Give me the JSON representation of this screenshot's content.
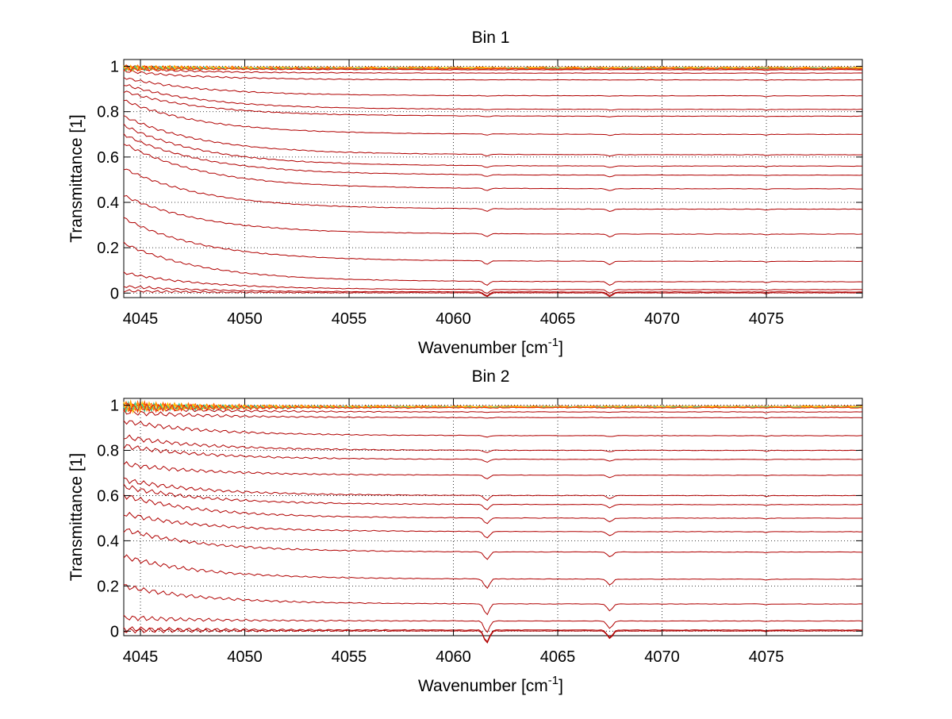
{
  "chart_data": [
    {
      "type": "line",
      "title": "Bin 1",
      "xlabel": "Wavenumber [cm",
      "xlabel_sup": "-1",
      "xlabel_end": "]",
      "ylabel": "Transmittance [1]",
      "xlim": [
        4044.2,
        4079.6
      ],
      "ylim": [
        -0.02,
        1.03
      ],
      "xticks": [
        4045,
        4050,
        4055,
        4060,
        4065,
        4070,
        4075
      ],
      "yticks": [
        0,
        0.2,
        0.4,
        0.6,
        0.8,
        1
      ],
      "ytick_labels": [
        "0",
        "0.2",
        "0.4",
        "0.6",
        "0.8",
        "1"
      ],
      "grid": true,
      "line_color": "#b00000",
      "noisy_colors": [
        "#ff6600",
        "#ff9900",
        "#ffcc00",
        "#33cc99",
        "#ff3300"
      ],
      "series": [
        {
          "start": 1.0,
          "end": 0.985
        },
        {
          "start": 0.99,
          "end": 0.97
        },
        {
          "start": 0.98,
          "end": 0.94
        },
        {
          "start": 0.95,
          "end": 0.87
        },
        {
          "start": 0.92,
          "end": 0.81
        },
        {
          "start": 0.89,
          "end": 0.78
        },
        {
          "start": 0.85,
          "end": 0.7
        },
        {
          "start": 0.78,
          "end": 0.61
        },
        {
          "start": 0.74,
          "end": 0.56
        },
        {
          "start": 0.7,
          "end": 0.52
        },
        {
          "start": 0.66,
          "end": 0.46
        },
        {
          "start": 0.55,
          "end": 0.37
        },
        {
          "start": 0.43,
          "end": 0.26
        },
        {
          "start": 0.33,
          "end": 0.14
        },
        {
          "start": 0.22,
          "end": 0.05
        },
        {
          "start": 0.09,
          "end": 0.015
        },
        {
          "start": 0.03,
          "end": 0.005
        },
        {
          "start": 0.01,
          "end": 0.001
        }
      ]
    },
    {
      "type": "line",
      "title": "Bin 2",
      "xlabel": "Wavenumber [cm",
      "xlabel_sup": "-1",
      "xlabel_end": "]",
      "ylabel": "Transmittance [1]",
      "xlim": [
        4044.2,
        4079.6
      ],
      "ylim": [
        -0.02,
        1.03
      ],
      "xticks": [
        4045,
        4050,
        4055,
        4060,
        4065,
        4070,
        4075
      ],
      "yticks": [
        0,
        0.2,
        0.4,
        0.6,
        0.8,
        1
      ],
      "ytick_labels": [
        "0",
        "0.2",
        "0.4",
        "0.6",
        "0.8",
        "1"
      ],
      "grid": true,
      "line_color": "#b00000",
      "noisy_colors": [
        "#ff6600",
        "#ff9900",
        "#ffcc00",
        "#33cc99",
        "#ff3300"
      ],
      "series": [
        {
          "start": 1.0,
          "end": 0.99
        },
        {
          "start": 0.99,
          "end": 0.97
        },
        {
          "start": 0.97,
          "end": 0.945
        },
        {
          "start": 0.93,
          "end": 0.865
        },
        {
          "start": 0.86,
          "end": 0.8
        },
        {
          "start": 0.82,
          "end": 0.76
        },
        {
          "start": 0.74,
          "end": 0.69
        },
        {
          "start": 0.67,
          "end": 0.6
        },
        {
          "start": 0.64,
          "end": 0.56
        },
        {
          "start": 0.6,
          "end": 0.5
        },
        {
          "start": 0.52,
          "end": 0.44
        },
        {
          "start": 0.45,
          "end": 0.35
        },
        {
          "start": 0.33,
          "end": 0.23
        },
        {
          "start": 0.2,
          "end": 0.12
        },
        {
          "start": 0.06,
          "end": 0.045
        },
        {
          "start": 0.01,
          "end": 0.005
        },
        {
          "start": 0.003,
          "end": 0.001
        }
      ]
    }
  ]
}
